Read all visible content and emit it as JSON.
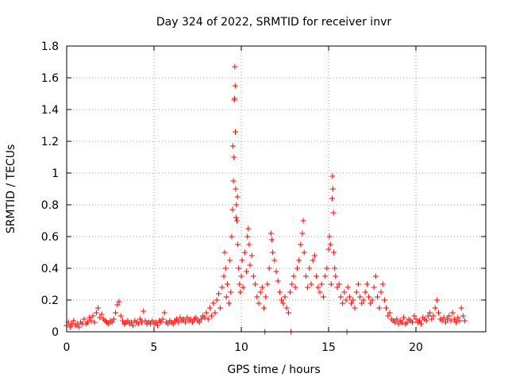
{
  "chart_data": {
    "type": "scatter",
    "title": "Day 324 of 2022, SRMTID for receiver invr",
    "xlabel": "GPS time / hours",
    "ylabel": "SRMTID / TECUs",
    "xlim": [
      0,
      24
    ],
    "ylim": [
      0,
      1.8
    ],
    "xticks": [
      0,
      5,
      10,
      15,
      20
    ],
    "xtick_labels": [
      "0",
      "5",
      "10",
      "15",
      "20"
    ],
    "yticks": [
      0,
      0.2,
      0.4,
      0.6,
      0.8,
      1.0,
      1.2,
      1.4,
      1.6,
      1.8
    ],
    "ytick_labels": [
      "0",
      "0.2",
      "0.4",
      "0.6",
      "0.8",
      "1",
      "1.2",
      "1.4",
      "1.6",
      "1.8"
    ],
    "grid": true,
    "marker": "+",
    "color": "#ff0000",
    "series": [
      {
        "name": "SRMTID",
        "points": [
          [
            0.0,
            0.04
          ],
          [
            0.1,
            0.06
          ],
          [
            0.2,
            0.03
          ],
          [
            0.3,
            0.05
          ],
          [
            0.4,
            0.07
          ],
          [
            0.5,
            0.04
          ],
          [
            0.6,
            0.05
          ],
          [
            0.7,
            0.03
          ],
          [
            0.8,
            0.06
          ],
          [
            0.9,
            0.05
          ],
          [
            1.0,
            0.08
          ],
          [
            1.1,
            0.05
          ],
          [
            1.2,
            0.06
          ],
          [
            1.3,
            0.09
          ],
          [
            1.4,
            0.07
          ],
          [
            1.5,
            0.1
          ],
          [
            1.6,
            0.06
          ],
          [
            1.7,
            0.12
          ],
          [
            1.8,
            0.15
          ],
          [
            1.9,
            0.09
          ],
          [
            2.0,
            0.11
          ],
          [
            2.1,
            0.08
          ],
          [
            2.2,
            0.07
          ],
          [
            2.3,
            0.06
          ],
          [
            2.4,
            0.05
          ],
          [
            2.5,
            0.07
          ],
          [
            2.6,
            0.06
          ],
          [
            2.7,
            0.08
          ],
          [
            2.8,
            0.12
          ],
          [
            2.9,
            0.17
          ],
          [
            3.0,
            0.19
          ],
          [
            3.1,
            0.1
          ],
          [
            3.2,
            0.07
          ],
          [
            3.3,
            0.05
          ],
          [
            3.4,
            0.06
          ],
          [
            3.5,
            0.07
          ],
          [
            3.6,
            0.05
          ],
          [
            3.7,
            0.06
          ],
          [
            3.8,
            0.04
          ],
          [
            3.9,
            0.07
          ],
          [
            4.0,
            0.06
          ],
          [
            4.1,
            0.05
          ],
          [
            4.2,
            0.08
          ],
          [
            4.3,
            0.06
          ],
          [
            4.4,
            0.13
          ],
          [
            4.5,
            0.07
          ],
          [
            4.6,
            0.05
          ],
          [
            4.7,
            0.06
          ],
          [
            4.8,
            0.05
          ],
          [
            4.9,
            0.07
          ],
          [
            5.0,
            0.05
          ],
          [
            5.1,
            0.06
          ],
          [
            5.2,
            0.04
          ],
          [
            5.3,
            0.07
          ],
          [
            5.4,
            0.06
          ],
          [
            5.5,
            0.08
          ],
          [
            5.6,
            0.12
          ],
          [
            5.7,
            0.06
          ],
          [
            5.8,
            0.05
          ],
          [
            5.9,
            0.07
          ],
          [
            6.0,
            0.06
          ],
          [
            6.1,
            0.05
          ],
          [
            6.2,
            0.07
          ],
          [
            6.3,
            0.08
          ],
          [
            6.4,
            0.06
          ],
          [
            6.5,
            0.09
          ],
          [
            6.6,
            0.07
          ],
          [
            6.7,
            0.08
          ],
          [
            6.8,
            0.06
          ],
          [
            6.9,
            0.09
          ],
          [
            7.0,
            0.07
          ],
          [
            7.1,
            0.08
          ],
          [
            7.2,
            0.06
          ],
          [
            7.3,
            0.08
          ],
          [
            7.4,
            0.09
          ],
          [
            7.5,
            0.07
          ],
          [
            7.6,
            0.06
          ],
          [
            7.7,
            0.08
          ],
          [
            7.8,
            0.1
          ],
          [
            7.9,
            0.09
          ],
          [
            8.0,
            0.12
          ],
          [
            8.1,
            0.08
          ],
          [
            8.2,
            0.15
          ],
          [
            8.3,
            0.1
          ],
          [
            8.4,
            0.18
          ],
          [
            8.5,
            0.12
          ],
          [
            8.6,
            0.2
          ],
          [
            8.7,
            0.24
          ],
          [
            8.8,
            0.15
          ],
          [
            8.9,
            0.28
          ],
          [
            9.0,
            0.35
          ],
          [
            9.05,
            0.5
          ],
          [
            9.1,
            0.4
          ],
          [
            9.15,
            0.22
          ],
          [
            9.2,
            0.3
          ],
          [
            9.3,
            0.18
          ],
          [
            9.35,
            0.45
          ],
          [
            9.4,
            0.25
          ],
          [
            9.45,
            0.6
          ],
          [
            9.5,
            0.77
          ],
          [
            9.52,
            1.17
          ],
          [
            9.55,
            0.95
          ],
          [
            9.58,
            1.1
          ],
          [
            9.6,
            1.46
          ],
          [
            9.62,
            1.47
          ],
          [
            9.63,
            1.67
          ],
          [
            9.65,
            1.55
          ],
          [
            9.66,
            1.26
          ],
          [
            9.68,
            0.9
          ],
          [
            9.7,
            0.72
          ],
          [
            9.72,
            0.8
          ],
          [
            9.75,
            0.7
          ],
          [
            9.78,
            0.85
          ],
          [
            9.8,
            0.55
          ],
          [
            9.85,
            0.4
          ],
          [
            9.9,
            0.3
          ],
          [
            9.95,
            0.25
          ],
          [
            10.0,
            0.35
          ],
          [
            10.05,
            0.45
          ],
          [
            10.1,
            0.28
          ],
          [
            10.2,
            0.5
          ],
          [
            10.3,
            0.38
          ],
          [
            10.35,
            0.6
          ],
          [
            10.4,
            0.65
          ],
          [
            10.45,
            0.55
          ],
          [
            10.5,
            0.42
          ],
          [
            10.6,
            0.48
          ],
          [
            10.7,
            0.35
          ],
          [
            10.8,
            0.3
          ],
          [
            10.9,
            0.22
          ],
          [
            11.0,
            0.18
          ],
          [
            11.1,
            0.25
          ],
          [
            11.2,
            0.28
          ],
          [
            11.3,
            0.15
          ],
          [
            11.35,
            0.0
          ],
          [
            11.4,
            0.22
          ],
          [
            11.5,
            0.3
          ],
          [
            11.6,
            0.4
          ],
          [
            11.7,
            0.62
          ],
          [
            11.75,
            0.58
          ],
          [
            11.8,
            0.5
          ],
          [
            11.9,
            0.45
          ],
          [
            12.0,
            0.38
          ],
          [
            12.1,
            0.32
          ],
          [
            12.2,
            0.25
          ],
          [
            12.3,
            0.2
          ],
          [
            12.4,
            0.18
          ],
          [
            12.5,
            0.22
          ],
          [
            12.6,
            0.15
          ],
          [
            12.7,
            0.12
          ],
          [
            12.8,
            0.25
          ],
          [
            12.85,
            0.0
          ],
          [
            12.9,
            0.3
          ],
          [
            13.0,
            0.35
          ],
          [
            13.1,
            0.28
          ],
          [
            13.2,
            0.4
          ],
          [
            13.3,
            0.45
          ],
          [
            13.4,
            0.55
          ],
          [
            13.5,
            0.62
          ],
          [
            13.55,
            0.7
          ],
          [
            13.6,
            0.5
          ],
          [
            13.7,
            0.35
          ],
          [
            13.8,
            0.28
          ],
          [
            13.9,
            0.4
          ],
          [
            14.0,
            0.3
          ],
          [
            14.1,
            0.45
          ],
          [
            14.2,
            0.48
          ],
          [
            14.3,
            0.35
          ],
          [
            14.4,
            0.28
          ],
          [
            14.5,
            0.25
          ],
          [
            14.6,
            0.3
          ],
          [
            14.7,
            0.22
          ],
          [
            14.8,
            0.35
          ],
          [
            14.9,
            0.4
          ],
          [
            15.0,
            0.52
          ],
          [
            15.05,
            0.6
          ],
          [
            15.1,
            0.55
          ],
          [
            15.15,
            0.3
          ],
          [
            15.2,
            0.84
          ],
          [
            15.22,
            0.98
          ],
          [
            15.25,
            0.9
          ],
          [
            15.28,
            0.75
          ],
          [
            15.3,
            0.5
          ],
          [
            15.35,
            0.4
          ],
          [
            15.4,
            0.35
          ],
          [
            15.5,
            0.28
          ],
          [
            15.6,
            0.3
          ],
          [
            15.7,
            0.22
          ],
          [
            15.8,
            0.18
          ],
          [
            15.9,
            0.25
          ],
          [
            16.0,
            0.2
          ],
          [
            16.05,
            0.0
          ],
          [
            16.1,
            0.28
          ],
          [
            16.2,
            0.22
          ],
          [
            16.3,
            0.18
          ],
          [
            16.4,
            0.2
          ],
          [
            16.5,
            0.15
          ],
          [
            16.6,
            0.25
          ],
          [
            16.7,
            0.3
          ],
          [
            16.8,
            0.22
          ],
          [
            16.9,
            0.18
          ],
          [
            17.0,
            0.2
          ],
          [
            17.1,
            0.25
          ],
          [
            17.2,
            0.3
          ],
          [
            17.3,
            0.22
          ],
          [
            17.4,
            0.18
          ],
          [
            17.5,
            0.2
          ],
          [
            17.6,
            0.28
          ],
          [
            17.7,
            0.35
          ],
          [
            17.8,
            0.22
          ],
          [
            17.9,
            0.15
          ],
          [
            18.0,
            0.25
          ],
          [
            18.1,
            0.3
          ],
          [
            18.2,
            0.2
          ],
          [
            18.3,
            0.15
          ],
          [
            18.4,
            0.1
          ],
          [
            18.5,
            0.12
          ],
          [
            18.6,
            0.08
          ],
          [
            18.7,
            0.07
          ],
          [
            18.8,
            0.06
          ],
          [
            18.9,
            0.08
          ],
          [
            19.0,
            0.05
          ],
          [
            19.1,
            0.07
          ],
          [
            19.2,
            0.06
          ],
          [
            19.3,
            0.09
          ],
          [
            19.4,
            0.05
          ],
          [
            19.5,
            0.06
          ],
          [
            19.6,
            0.08
          ],
          [
            19.7,
            0.07
          ],
          [
            19.8,
            0.06
          ],
          [
            19.9,
            0.1
          ],
          [
            20.0,
            0.08
          ],
          [
            20.1,
            0.06
          ],
          [
            20.2,
            0.07
          ],
          [
            20.3,
            0.05
          ],
          [
            20.4,
            0.09
          ],
          [
            20.5,
            0.08
          ],
          [
            20.6,
            0.07
          ],
          [
            20.7,
            0.1
          ],
          [
            20.8,
            0.12
          ],
          [
            20.9,
            0.08
          ],
          [
            21.0,
            0.1
          ],
          [
            21.1,
            0.15
          ],
          [
            21.2,
            0.2
          ],
          [
            21.3,
            0.12
          ],
          [
            21.4,
            0.08
          ],
          [
            21.5,
            0.07
          ],
          [
            21.6,
            0.09
          ],
          [
            21.7,
            0.06
          ],
          [
            21.8,
            0.08
          ],
          [
            21.9,
            0.1
          ],
          [
            22.0,
            0.07
          ],
          [
            22.1,
            0.12
          ],
          [
            22.2,
            0.08
          ],
          [
            22.3,
            0.06
          ],
          [
            22.4,
            0.09
          ],
          [
            22.5,
            0.07
          ],
          [
            22.6,
            0.15
          ],
          [
            22.7,
            0.1
          ],
          [
            22.8,
            0.07
          ]
        ]
      }
    ]
  }
}
